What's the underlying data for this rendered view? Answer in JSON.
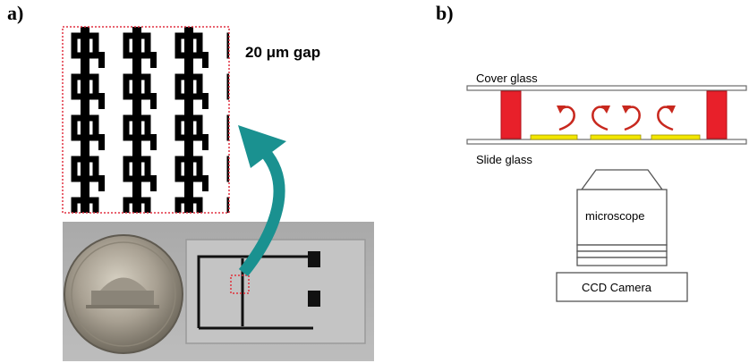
{
  "panel_a": {
    "label": "a)",
    "gap_text": "20 μm gap"
  },
  "panel_b": {
    "label": "b)",
    "cover_glass": "Cover glass",
    "slide_glass": "Slide glass",
    "microscope": "microscope",
    "camera": "CCD Camera"
  },
  "colors": {
    "spacer": "#e8202a",
    "electrode": "#f2e600",
    "flow_arrow": "#c8281e",
    "curved_arrow": "#1a9190",
    "zoom_box": "#e0303a"
  }
}
